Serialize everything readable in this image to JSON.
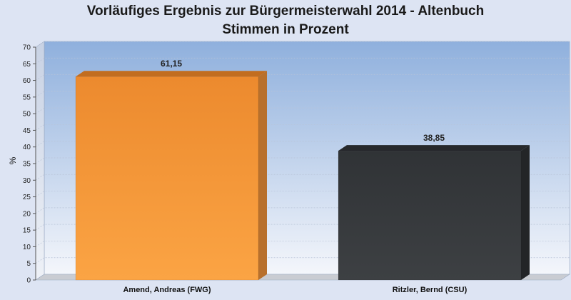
{
  "chart_data": {
    "type": "bar",
    "title": "Vorläufiges Ergebnis zur Bürgermeisterwahl 2014 - Altenbuch",
    "subtitle": "Stimmen in Prozent",
    "ylabel": "%",
    "xlabel": "",
    "ylim": [
      0,
      70
    ],
    "yticks": [
      "0",
      "5",
      "10",
      "15",
      "20",
      "25",
      "30",
      "35",
      "40",
      "45",
      "50",
      "55",
      "60",
      "65",
      "70"
    ],
    "categories": [
      "Amend, Andreas (FWG)",
      "Ritzler, Bernd (CSU)"
    ],
    "values": [
      61.15,
      38.85
    ],
    "value_labels": [
      "61,15",
      "38,85"
    ],
    "colors": [
      "#f59a3a",
      "#35383c"
    ],
    "grid": true,
    "legend": "none"
  }
}
